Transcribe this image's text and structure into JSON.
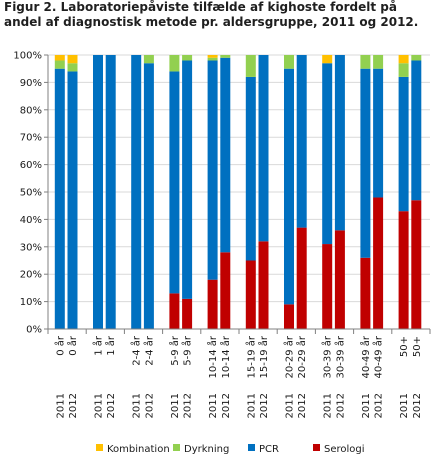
{
  "title": "Figur 2. Laboratoriepåviste tilfælde af kighoste fordelt på andel af diagnostisk metode pr. aldersgruppe, 2011 og 2012.",
  "chart_data": {
    "type": "bar",
    "stacked": true,
    "title": "Figur 2. Laboratoriepåviste tilfælde af kighoste fordelt på andel af diagnostisk metode pr. aldersgruppe, 2011 og 2012.",
    "ylim": [
      0,
      100
    ],
    "yticks": [
      "0%",
      "10%",
      "20%",
      "30%",
      "40%",
      "50%",
      "60%",
      "70%",
      "80%",
      "90%",
      "100%"
    ],
    "grid": true,
    "legend_position": "bottom",
    "groups": [
      "0 år",
      "1 år",
      "2-4 år",
      "5-9 år",
      "10-14 år",
      "15-19 år",
      "20-29 år",
      "30-39 år",
      "40-49 år",
      "50+"
    ],
    "years": [
      "2011",
      "2012"
    ],
    "categories": [
      "0 år 2011",
      "0 år 2012",
      "1 år 2011",
      "1 år 2012",
      "2-4 år 2011",
      "2-4 år 2012",
      "5-9 år 2011",
      "5-9 år 2012",
      "10-14 år 2011",
      "10-14 år 2012",
      "15-19 år 2011",
      "15-19 år 2012",
      "20-29 år 2011",
      "20-29 år 2012",
      "30-39 år 2011",
      "30-39 år 2012",
      "40-49 år 2011",
      "40-49 år 2012",
      "50+ 2011",
      "50+ 2012"
    ],
    "series": [
      {
        "name": "Serologi",
        "color": "#c00000",
        "values": [
          0,
          0,
          0,
          0,
          0,
          0,
          13,
          11,
          18,
          28,
          25,
          32,
          9,
          37,
          31,
          36,
          26,
          48,
          43,
          47
        ]
      },
      {
        "name": "PCR",
        "color": "#0070c0",
        "values": [
          95,
          94,
          100,
          100,
          100,
          97,
          81,
          87,
          80,
          71,
          67,
          68,
          86,
          63,
          66,
          64,
          69,
          47,
          49,
          51
        ]
      },
      {
        "name": "Dyrkning",
        "color": "#92d050",
        "values": [
          3,
          3,
          0,
          0,
          0,
          3,
          6,
          2,
          1,
          1,
          8,
          0,
          5,
          0,
          0,
          0,
          5,
          5,
          5,
          2
        ]
      },
      {
        "name": "Kombination",
        "color": "#ffc000",
        "values": [
          2,
          3,
          0,
          0,
          0,
          0,
          0,
          0,
          1,
          0,
          0,
          0,
          0,
          0,
          3,
          0,
          0,
          0,
          3,
          0
        ]
      }
    ],
    "legend": [
      "Kombination",
      "Dyrkning",
      "PCR",
      "Serologi"
    ]
  }
}
